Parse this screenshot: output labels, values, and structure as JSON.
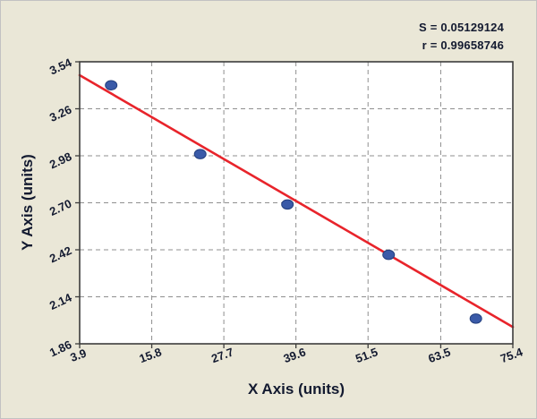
{
  "stats": {
    "s": "S = 0.05129124",
    "r": "r = 0.99658746"
  },
  "chart_data": {
    "type": "scatter",
    "title": "",
    "xlabel": "X Axis (units)",
    "ylabel": "Y Axis (units)",
    "xlim": [
      3.9,
      75.4
    ],
    "ylim": [
      1.86,
      3.54
    ],
    "x_ticks": [
      3.9,
      15.8,
      27.7,
      39.6,
      51.5,
      63.5,
      75.4
    ],
    "x_tick_labels": [
      "3.9",
      "15.8",
      "27.7",
      "39.6",
      "51.5",
      "63.5",
      "75.4"
    ],
    "y_ticks": [
      1.86,
      2.14,
      2.42,
      2.7,
      2.98,
      3.26,
      3.54
    ],
    "y_tick_labels": [
      "1.86",
      "2.14",
      "2.42",
      "2.70",
      "2.98",
      "3.26",
      "3.54"
    ],
    "grid": "dashed-both-axes",
    "legend": "none",
    "series": [
      {
        "name": "data-points",
        "marker": "ellipse",
        "points": [
          {
            "x": 9.1,
            "y": 3.4
          },
          {
            "x": 23.8,
            "y": 2.99
          },
          {
            "x": 38.2,
            "y": 2.69
          },
          {
            "x": 54.9,
            "y": 2.39
          },
          {
            "x": 69.3,
            "y": 2.01
          }
        ]
      }
    ],
    "fit_line": {
      "x1": 3.9,
      "y1": 3.46,
      "x2": 75.4,
      "y2": 1.96
    },
    "fit_stats": {
      "S": 0.05129124,
      "r": 0.99658746
    },
    "colors": {
      "line": "#e8242b",
      "marker_fill": "#3a5aa8",
      "marker_edge": "#24407f",
      "grid": "#8f8f8f",
      "plot_border": "#3c3c3c",
      "canvas_bg": "#eae7d7",
      "plot_bg": "#ffffff",
      "text": "#131a30"
    }
  }
}
